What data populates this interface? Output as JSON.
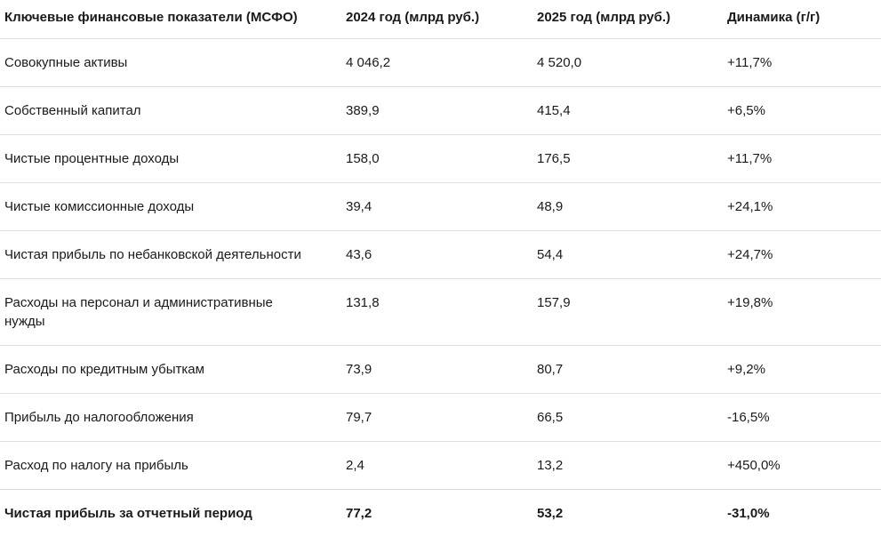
{
  "table": {
    "headers": [
      "Ключевые финансовые показатели (МСФО)",
      "2024 год (млрд руб.)",
      "2025 год (млрд руб.)",
      "Динамика (г/г)"
    ],
    "rows": [
      {
        "indicator": "Совокупные активы",
        "y2024": "4 046,2",
        "y2025": "4 520,0",
        "change": "+11,7%"
      },
      {
        "indicator": "Собственный капитал",
        "y2024": "389,9",
        "y2025": "415,4",
        "change": "+6,5%"
      },
      {
        "indicator": "Чистые процентные доходы",
        "y2024": "158,0",
        "y2025": "176,5",
        "change": "+11,7%"
      },
      {
        "indicator": "Чистые комиссионные доходы",
        "y2024": "39,4",
        "y2025": "48,9",
        "change": "+24,1%"
      },
      {
        "indicator": "Чистая прибыль по небанковской деятельности",
        "y2024": "43,6",
        "y2025": "54,4",
        "change": "+24,7%"
      },
      {
        "indicator": "Расходы на персонал и административные\nнужды",
        "y2024": "131,8",
        "y2025": "157,9",
        "change": "+19,8%"
      },
      {
        "indicator": "Расходы по кредитным убыткам",
        "y2024": "73,9",
        "y2025": "80,7",
        "change": "+9,2%"
      },
      {
        "indicator": "Прибыль до налогообложения",
        "y2024": "79,7",
        "y2025": "66,5",
        "change": "-16,5%"
      },
      {
        "indicator": "Расход по налогу на прибыль",
        "y2024": "2,4",
        "y2025": "13,2",
        "change": "+450,0%"
      },
      {
        "indicator": "Чистая прибыль за отчетный период",
        "y2024": "77,2",
        "y2025": "53,2",
        "change": "-31,0%"
      }
    ],
    "total_row_label": "Чистая прибыль за отчетный период"
  },
  "colors": {
    "background": "#ffffff",
    "text": "#1a1a1a",
    "divider": "#e0e0e0",
    "total_divider": "#d9d9d9"
  },
  "chart_data": {
    "type": "table",
    "title": "Ключевые финансовые показатели (МСФО)",
    "columns": [
      "Ключевые финансовые показатели (МСФО)",
      "2024 год (млрд руб.)",
      "2025 год (млрд руб.)",
      "Динамика (г/г)"
    ],
    "unit": "млрд руб.",
    "rows": [
      {
        "indicator": "Совокупные активы",
        "y2024": 4046.2,
        "y2025": 4520.0,
        "change_pct": 11.7
      },
      {
        "indicator": "Собственный капитал",
        "y2024": 389.9,
        "y2025": 415.4,
        "change_pct": 6.5
      },
      {
        "indicator": "Чистые процентные доходы",
        "y2024": 158.0,
        "y2025": 176.5,
        "change_pct": 11.7
      },
      {
        "indicator": "Чистые комиссионные доходы",
        "y2024": 39.4,
        "y2025": 48.9,
        "change_pct": 24.1
      },
      {
        "indicator": "Чистая прибыль по небанковской деятельности",
        "y2024": 43.6,
        "y2025": 54.4,
        "change_pct": 24.7
      },
      {
        "indicator": "Расходы на персонал и административные нужды",
        "y2024": 131.8,
        "y2025": 157.9,
        "change_pct": 19.8
      },
      {
        "indicator": "Расходы по кредитным убыткам",
        "y2024": 73.9,
        "y2025": 80.7,
        "change_pct": 9.2
      },
      {
        "indicator": "Прибыль до налогообложения",
        "y2024": 79.7,
        "y2025": 66.5,
        "change_pct": -16.5
      },
      {
        "indicator": "Расход по налогу на прибыль",
        "y2024": 2.4,
        "y2025": 13.2,
        "change_pct": 450.0
      },
      {
        "indicator": "Чистая прибыль за отчетный период",
        "y2024": 77.2,
        "y2025": 53.2,
        "change_pct": -31.0
      }
    ]
  }
}
